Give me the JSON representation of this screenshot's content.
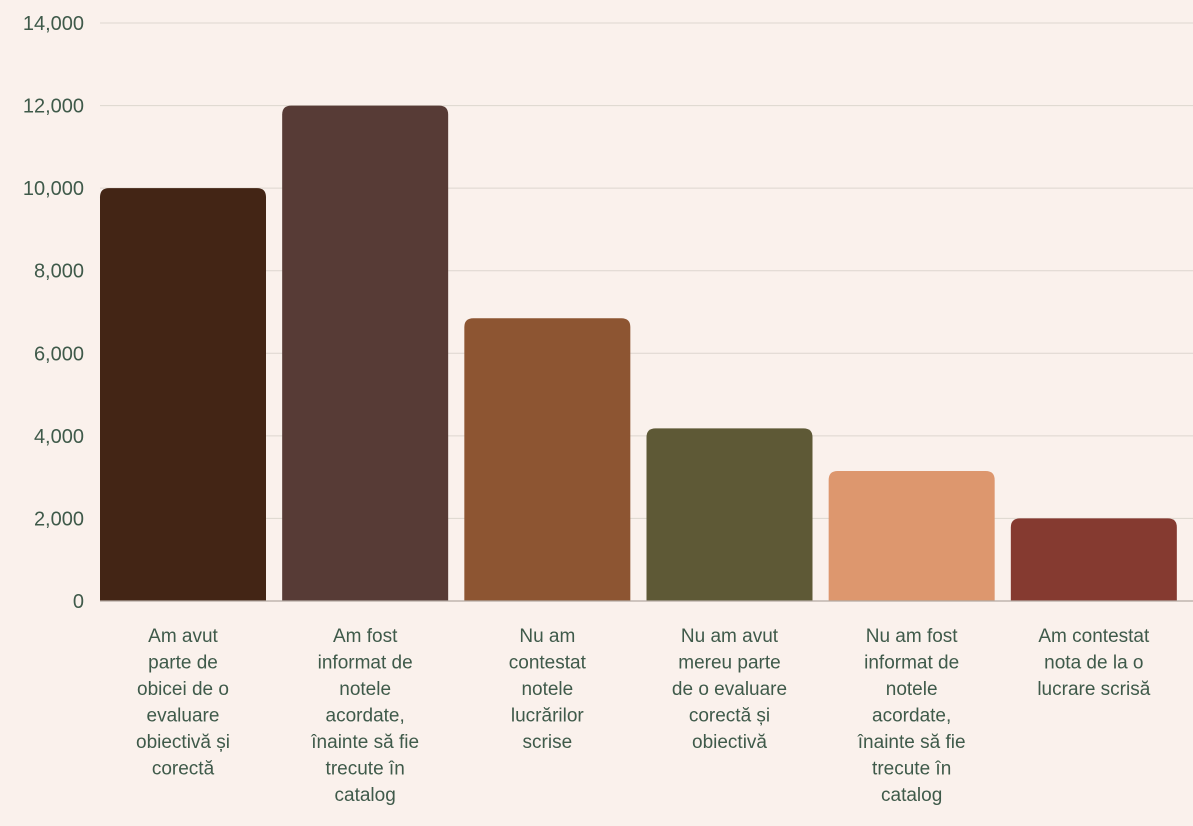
{
  "chart_data": {
    "type": "bar",
    "title": "",
    "xlabel": "",
    "ylabel": "",
    "ylim": [
      0,
      14000
    ],
    "yticks": [
      0,
      2000,
      4000,
      6000,
      8000,
      10000,
      12000,
      14000
    ],
    "ytick_labels": [
      "0",
      "2,000",
      "4,000",
      "6,000",
      "8,000",
      "10,000",
      "12,000",
      "14,000"
    ],
    "grid": true,
    "legend": "none",
    "categories": [
      "Am avut parte de obicei de o evaluare obiectivă și corectă",
      "Am fost informat de notele acordate, înainte să fie trecute în catalog",
      "Nu am contestat notele lucrărilor scrise",
      "Nu am avut mereu parte de o evaluare corectă și obiectivă",
      "Nu am fost informat de notele acordate, înainte să fie trecute în catalog",
      "Am contestat nota de la o lucrare scrisă"
    ],
    "category_lines": [
      [
        "Am avut",
        "parte de",
        "obicei de o",
        "evaluare",
        "obiectivă și",
        "corectă"
      ],
      [
        "Am fost",
        "informat de",
        "notele",
        "acordate,",
        "înainte să fie",
        "trecute în",
        "catalog"
      ],
      [
        "Nu am",
        "contestat",
        "notele",
        "lucrărilor",
        "scrise"
      ],
      [
        "Nu am avut",
        "mereu parte",
        "de o evaluare",
        "corectă și",
        "obiectivă"
      ],
      [
        "Nu am fost",
        "informat de",
        "notele",
        "acordate,",
        "înainte să fie",
        "trecute în",
        "catalog"
      ],
      [
        "Am contestat",
        "nota de la o",
        "lucrare scrisă"
      ]
    ],
    "values": [
      10000,
      12000,
      6850,
      4180,
      3150,
      2000
    ],
    "colors": [
      "#432515",
      "#573b36",
      "#8d5532",
      "#5e5936",
      "#dd976e",
      "#853a30"
    ]
  }
}
